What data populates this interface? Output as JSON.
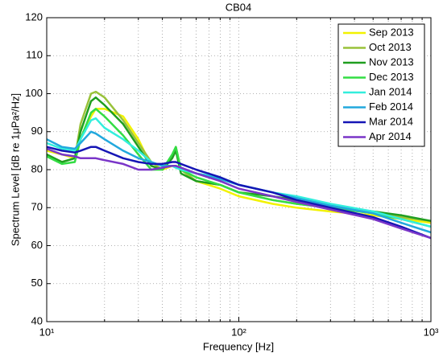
{
  "chart_data": {
    "type": "line",
    "title": "CB04",
    "x_label": "Frequency [Hz]",
    "y_label": "Spectrum Level [dB re 1μPa²/Hz]",
    "x_scale": "log",
    "grid": true,
    "legend": "upper right",
    "xlim": [
      10,
      1000
    ],
    "xticks": [
      {
        "value": 10,
        "label": "10¹"
      },
      {
        "value": 100,
        "label": "10²"
      },
      {
        "value": 1000,
        "label": "10³"
      }
    ],
    "ylim": [
      40,
      120
    ],
    "yticks": [
      40,
      50,
      60,
      70,
      80,
      90,
      100,
      110,
      120
    ],
    "x": [
      10,
      12,
      14,
      15,
      17,
      18,
      20,
      25,
      30,
      35,
      40,
      45,
      47,
      50,
      60,
      80,
      100,
      150,
      200,
      300,
      500,
      700,
      1000
    ],
    "series": [
      {
        "name": "Sep 2013",
        "color": "#f2f200",
        "values": [
          85,
          84,
          83,
          88,
          94,
          96,
          96,
          94,
          88,
          81,
          80,
          81,
          81,
          80,
          77,
          75,
          73,
          71,
          70,
          69,
          68,
          67,
          66
        ]
      },
      {
        "name": "Oct 2013",
        "color": "#99c23a",
        "values": [
          84,
          82,
          83,
          92,
          100,
          100.5,
          99,
          93,
          87,
          82,
          80,
          83,
          86,
          80,
          77,
          76,
          74,
          72,
          71,
          70,
          68.5,
          67.5,
          66.5
        ]
      },
      {
        "name": "Nov 2013",
        "color": "#1f9e1f",
        "values": [
          84,
          82,
          83,
          90,
          98,
          99,
          97,
          92,
          86,
          81,
          80,
          83,
          85,
          79,
          77,
          76,
          74,
          73,
          72,
          70.5,
          69,
          68,
          66.5
        ]
      },
      {
        "name": "Dec 2013",
        "color": "#33dd44",
        "values": [
          83.5,
          81.5,
          82,
          88,
          95,
          96,
          94,
          89,
          84,
          80,
          80,
          84,
          86,
          80,
          78,
          76,
          74,
          72,
          71,
          70,
          68.5,
          67,
          65
        ]
      },
      {
        "name": "Jan 2014",
        "color": "#33eedd",
        "values": [
          87,
          85.5,
          85,
          88,
          93,
          93.5,
          91,
          88,
          85,
          82,
          81,
          81,
          80.5,
          80,
          79,
          78,
          76,
          74,
          73,
          71,
          69,
          67,
          65
        ]
      },
      {
        "name": "Feb 2014",
        "color": "#22a8dd",
        "values": [
          88,
          86,
          85.5,
          87,
          90,
          89.5,
          88,
          85,
          83,
          82,
          81,
          81,
          81,
          80.5,
          79,
          77.5,
          76,
          74,
          72.5,
          70.5,
          68.5,
          66,
          63.5
        ]
      },
      {
        "name": "Mar 2014",
        "color": "#1515b5",
        "values": [
          86,
          85,
          84.5,
          85,
          86,
          86,
          85,
          83,
          82,
          81.5,
          81.5,
          82,
          82,
          81.5,
          80,
          78,
          76,
          74,
          72,
          70,
          67.5,
          65,
          62
        ]
      },
      {
        "name": "Apr 2014",
        "color": "#7a35c8",
        "values": [
          85.5,
          84,
          83.5,
          83,
          83,
          83,
          82.5,
          81.5,
          80,
          80,
          80.5,
          81,
          81,
          80.5,
          79,
          77,
          75,
          73,
          71.5,
          69.5,
          67,
          64.5,
          62
        ]
      }
    ]
  }
}
